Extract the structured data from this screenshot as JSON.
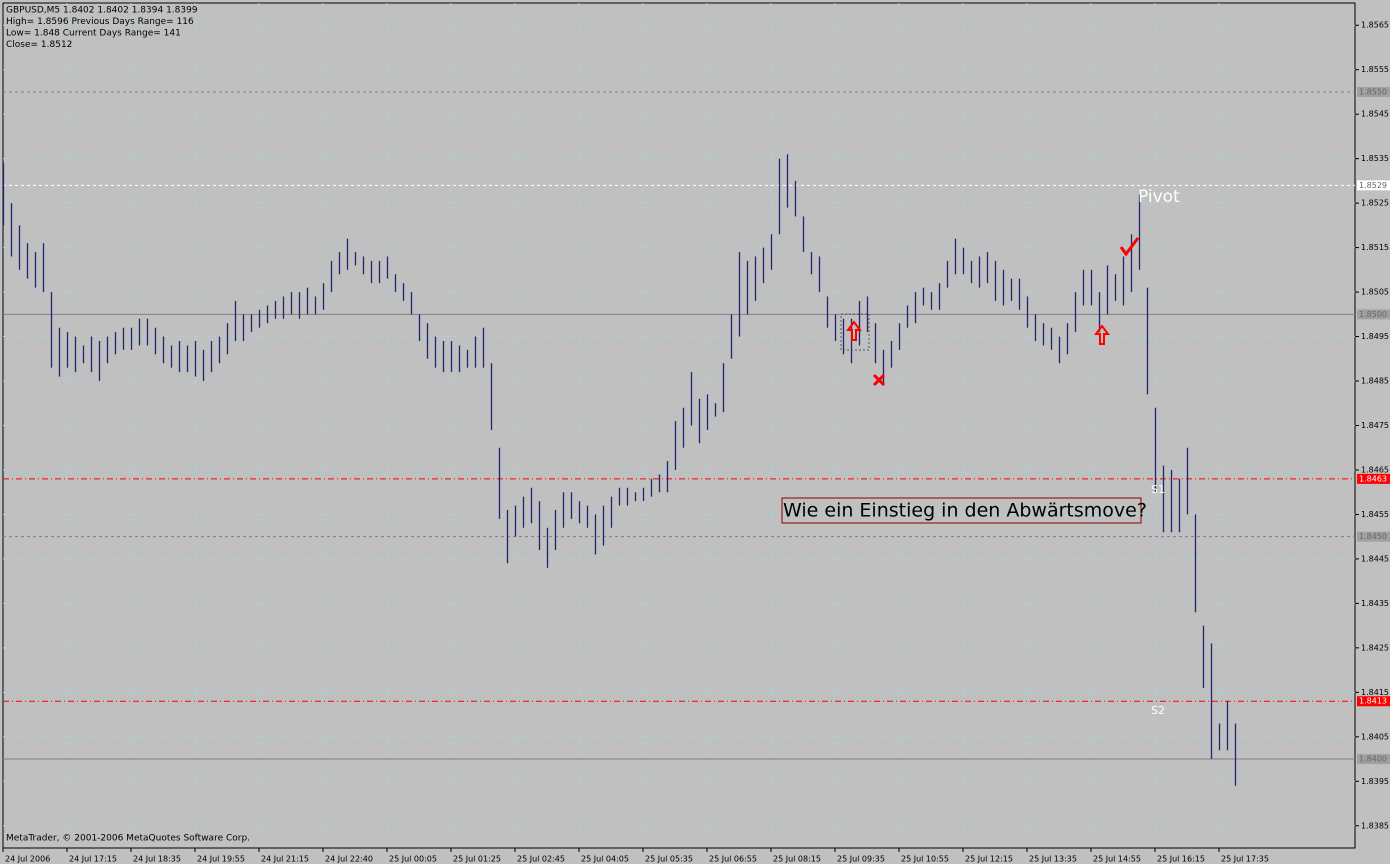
{
  "chart_data": {
    "type": "ohlc",
    "header": [
      "GBPUSD,M5  1.8402 1.8402 1.8394 1.8399",
      "High= 1.8596    Previous Days Range= 116",
      "Low= 1.848    Current Days Range= 141",
      "Close= 1.8512"
    ],
    "footer": "MetaTrader, © 2001-2006 MetaQuotes Software Corp.",
    "annotation": "Wie ein Einstieg in den Abwärtsmove?",
    "pivot_label": "Pivot",
    "s1_label": "S1",
    "s2_label": "S2",
    "color": "#23236e",
    "grid": true,
    "xlim": [
      0,
      169
    ],
    "ylim": [
      1.838,
      1.857
    ],
    "yticks": [
      1.8565,
      1.8555,
      1.8545,
      1.8535,
      1.8525,
      1.8515,
      1.8505,
      1.8495,
      1.8485,
      1.8475,
      1.8465,
      1.8455,
      1.8445,
      1.8435,
      1.8425,
      1.8415,
      1.8405,
      1.8395,
      1.8385
    ],
    "xticks": [
      {
        "value": 0,
        "label": "24 Jul 2006"
      },
      {
        "value": 8,
        "label": "24 Jul 17:15"
      },
      {
        "value": 16,
        "label": "24 Jul 18:35"
      },
      {
        "value": 24,
        "label": "24 Jul 19:55"
      },
      {
        "value": 32,
        "label": "24 Jul 21:15"
      },
      {
        "value": 40,
        "label": "24 Jul 22:40"
      },
      {
        "value": 48,
        "label": "25 Jul 00:05"
      },
      {
        "value": 56,
        "label": "25 Jul 01:25"
      },
      {
        "value": 64,
        "label": "25 Jul 02:45"
      },
      {
        "value": 72,
        "label": "25 Jul 04:05"
      },
      {
        "value": 80,
        "label": "25 Jul 05:35"
      },
      {
        "value": 88,
        "label": "25 Jul 06:55"
      },
      {
        "value": 96,
        "label": "25 Jul 08:15"
      },
      {
        "value": 104,
        "label": "25 Jul 09:35"
      },
      {
        "value": 112,
        "label": "25 Jul 10:55"
      },
      {
        "value": 120,
        "label": "25 Jul 12:15"
      },
      {
        "value": 128,
        "label": "25 Jul 13:35"
      },
      {
        "value": 136,
        "label": "25 Jul 14:55"
      },
      {
        "value": 144,
        "label": "25 Jul 16:15"
      },
      {
        "value": 152,
        "label": "25 Jul 17:35"
      }
    ],
    "levels": [
      {
        "value": 1.855,
        "label": "1.8550",
        "color": "#808080",
        "style": "dash"
      },
      {
        "value": 1.8529,
        "label": "1.8529",
        "color": "#ffffff",
        "style": "dash"
      },
      {
        "value": 1.85,
        "label": "1.8500",
        "color": "#808080",
        "style": "solid"
      },
      {
        "value": 1.8463,
        "label": "1.8463",
        "color": "#ff0000",
        "style": "dashdot"
      },
      {
        "value": 1.845,
        "label": "1.8450",
        "color": "#808080",
        "style": "dash"
      },
      {
        "value": 1.8413,
        "label": "1.8413",
        "color": "#ff0000",
        "style": "dashdot"
      },
      {
        "value": 1.84,
        "label": "1.8400",
        "color": "#808080",
        "style": "solid"
      }
    ],
    "high": [
      1.8534,
      1.8525,
      1.852,
      1.8516,
      1.8514,
      1.8516,
      1.8505,
      1.8497,
      1.8496,
      1.8495,
      1.8493,
      1.8495,
      1.8494,
      1.8495,
      1.8496,
      1.8497,
      1.8497,
      1.8499,
      1.8499,
      1.8497,
      1.8495,
      1.8493,
      1.8494,
      1.8493,
      1.8494,
      1.8492,
      1.8494,
      1.8495,
      1.8498,
      1.8503,
      1.85,
      1.85,
      1.8501,
      1.8502,
      1.8503,
      1.8504,
      1.8505,
      1.8505,
      1.8506,
      1.8504,
      1.8507,
      1.8512,
      1.8514,
      1.8517,
      1.8514,
      1.8513,
      1.8512,
      1.8512,
      1.8513,
      1.8509,
      1.8507,
      1.8505,
      1.85,
      1.8498,
      1.8495,
      1.8494,
      1.8494,
      1.8493,
      1.8492,
      1.8495,
      1.8497,
      1.8489,
      1.847,
      1.8456,
      1.8457,
      1.8459,
      1.8461,
      1.8458,
      1.8452,
      1.8456,
      1.846,
      1.846,
      1.8458,
      1.8457,
      1.8455,
      1.8457,
      1.8459,
      1.8461,
      1.8461,
      1.846,
      1.8461,
      1.8463,
      1.8464,
      1.8467,
      1.8476,
      1.8479,
      1.8487,
      1.8481,
      1.8482,
      1.848,
      1.8489,
      1.85,
      1.8514,
      1.8512,
      1.8513,
      1.8515,
      1.8518,
      1.8535,
      1.8536,
      1.853,
      1.8522,
      1.8514,
      1.8513,
      1.8504,
      1.85,
      1.8499,
      1.8499,
      1.8503,
      1.8504,
      1.8498,
      1.8492,
      1.8494,
      1.8498,
      1.8502,
      1.8505,
      1.8506,
      1.8505,
      1.8507,
      1.8512,
      1.8517,
      1.8515,
      1.8512,
      1.8513,
      1.8514,
      1.8512,
      1.851,
      1.8508,
      1.8508,
      1.8504,
      1.85,
      1.8498,
      1.8497,
      1.8495,
      1.8498,
      1.8505,
      1.851,
      1.851,
      1.8505,
      1.8511,
      1.8509,
      1.8513,
      1.8518,
      1.8527,
      1.8506,
      1.8479,
      1.8466,
      1.8465,
      1.8463,
      1.847,
      1.8455,
      1.843,
      1.8426,
      1.8408,
      1.8413,
      1.8408
    ],
    "low": [
      1.852,
      1.8513,
      1.851,
      1.8508,
      1.8506,
      1.8505,
      1.8488,
      1.8486,
      1.8488,
      1.8487,
      1.8489,
      1.8487,
      1.8485,
      1.8489,
      1.8491,
      1.8492,
      1.8492,
      1.8493,
      1.8493,
      1.8491,
      1.8489,
      1.8488,
      1.8487,
      1.8487,
      1.8486,
      1.8485,
      1.8487,
      1.8489,
      1.8491,
      1.8494,
      1.8494,
      1.8496,
      1.8497,
      1.8498,
      1.8499,
      1.8499,
      1.85,
      1.8499,
      1.85,
      1.85,
      1.8501,
      1.8505,
      1.8509,
      1.851,
      1.8511,
      1.8509,
      1.8507,
      1.8507,
      1.8508,
      1.8505,
      1.8503,
      1.85,
      1.8494,
      1.849,
      1.8488,
      1.8487,
      1.8487,
      1.8487,
      1.8488,
      1.8488,
      1.8488,
      1.8474,
      1.8454,
      1.8444,
      1.845,
      1.8452,
      1.8453,
      1.8447,
      1.8443,
      1.8447,
      1.8452,
      1.8454,
      1.8453,
      1.8452,
      1.8446,
      1.8448,
      1.8452,
      1.8457,
      1.8457,
      1.8458,
      1.8458,
      1.8459,
      1.846,
      1.846,
      1.8465,
      1.847,
      1.8475,
      1.8471,
      1.8474,
      1.8477,
      1.8478,
      1.849,
      1.8495,
      1.85,
      1.8503,
      1.8507,
      1.851,
      1.8518,
      1.8524,
      1.8522,
      1.8514,
      1.8509,
      1.8505,
      1.8497,
      1.8494,
      1.8491,
      1.8489,
      1.8493,
      1.8496,
      1.8489,
      1.8484,
      1.8488,
      1.8492,
      1.8497,
      1.8498,
      1.8502,
      1.8501,
      1.8501,
      1.8506,
      1.8509,
      1.8509,
      1.8507,
      1.8506,
      1.8507,
      1.8503,
      1.8502,
      1.8503,
      1.8501,
      1.8497,
      1.8494,
      1.8493,
      1.8492,
      1.8489,
      1.8491,
      1.8496,
      1.8502,
      1.8502,
      1.8496,
      1.85,
      1.8503,
      1.8502,
      1.8505,
      1.851,
      1.8482,
      1.846,
      1.8451,
      1.8451,
      1.8451,
      1.8455,
      1.8433,
      1.8416,
      1.84,
      1.8402,
      1.8402,
      1.8394
    ]
  }
}
